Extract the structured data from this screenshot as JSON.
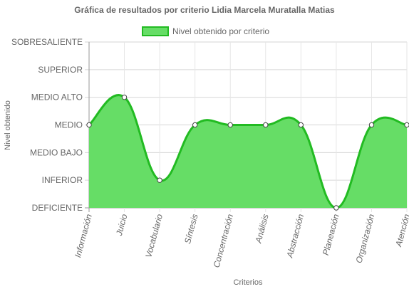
{
  "chart_data": {
    "type": "area",
    "title": "Gráfica de resultados por criterio Lidia Marcela Muratalla Matias",
    "xlabel": "Criterios",
    "ylabel": "Nivel obtenido",
    "categories": [
      "Información",
      "Juicio",
      "Vocabulario",
      "Síntesis",
      "Concentración",
      "Análisis",
      "Abstracción",
      "Planeación",
      "Organización",
      "Atención"
    ],
    "y_levels": [
      "DEFICIENTE",
      "INFERIOR",
      "MEDIO BAJO",
      "MEDIO",
      "MEDIO ALTO",
      "SUPERIOR",
      "SOBRESALIENTE"
    ],
    "ylim": [
      0,
      6
    ],
    "grid": true,
    "legend_position": "top",
    "series": [
      {
        "name": "Nivel obtenido por criterio",
        "values": [
          3,
          4,
          1,
          3,
          3,
          3,
          3,
          0,
          3,
          3
        ],
        "value_labels": [
          "MEDIO",
          "MEDIO ALTO",
          "INFERIOR",
          "MEDIO",
          "MEDIO",
          "MEDIO",
          "MEDIO",
          "DEFICIENTE",
          "MEDIO",
          "MEDIO"
        ],
        "fill_color": "#66dd66",
        "line_color": "#22bb22"
      }
    ]
  }
}
